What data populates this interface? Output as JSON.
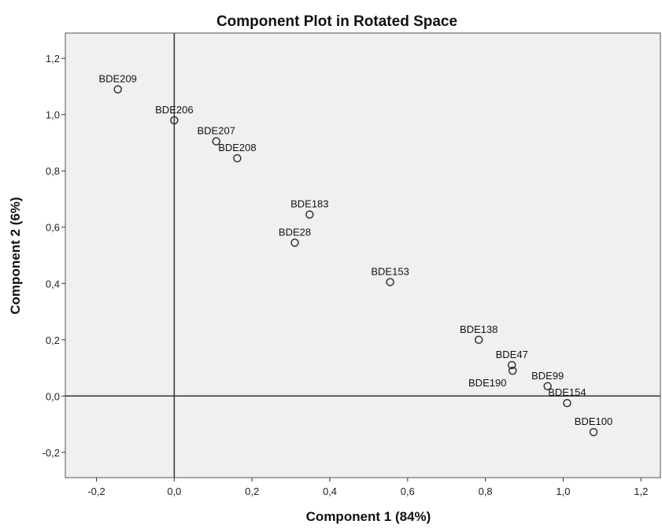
{
  "chart_data": {
    "type": "scatter",
    "title": "Component Plot in Rotated Space",
    "xlabel": "Component 1 (84%)",
    "ylabel": "Component 2 (6%)",
    "xlim": [
      -0.28,
      1.25
    ],
    "ylim": [
      -0.29,
      1.29
    ],
    "xticks": [
      -0.2,
      0.0,
      0.2,
      0.4,
      0.6,
      0.8,
      1.0,
      1.2
    ],
    "xtick_labels": [
      "-0,2",
      "0,0",
      "0,2",
      "0,4",
      "0,6",
      "0,8",
      "1,0",
      "1,2"
    ],
    "yticks": [
      -0.2,
      0.0,
      0.2,
      0.4,
      0.6,
      0.8,
      1.0,
      1.2
    ],
    "ytick_labels": [
      "-0,2",
      "0,0",
      "0,2",
      "0,4",
      "0,6",
      "0,8",
      "1,0",
      "1,2"
    ],
    "reference_lines": {
      "x": 0,
      "y": 0
    },
    "grid": false,
    "background_color": "#f0f0f0",
    "marker_color": "#333333",
    "points": [
      {
        "label": "BDE209",
        "x": -0.145,
        "y": 1.09
      },
      {
        "label": "BDE206",
        "x": 0.0,
        "y": 0.98
      },
      {
        "label": "BDE207",
        "x": 0.108,
        "y": 0.905
      },
      {
        "label": "BDE208",
        "x": 0.162,
        "y": 0.845
      },
      {
        "label": "BDE183",
        "x": 0.348,
        "y": 0.645
      },
      {
        "label": "BDE28",
        "x": 0.31,
        "y": 0.545
      },
      {
        "label": "BDE153",
        "x": 0.555,
        "y": 0.405
      },
      {
        "label": "BDE138",
        "x": 0.783,
        "y": 0.2
      },
      {
        "label": "BDE47",
        "x": 0.868,
        "y": 0.11
      },
      {
        "label": "BDE190",
        "x": 0.87,
        "y": 0.09
      },
      {
        "label": "BDE99",
        "x": 0.96,
        "y": 0.035
      },
      {
        "label": "BDE154",
        "x": 1.01,
        "y": -0.025
      },
      {
        "label": "BDE100",
        "x": 1.078,
        "y": -0.128
      }
    ]
  }
}
